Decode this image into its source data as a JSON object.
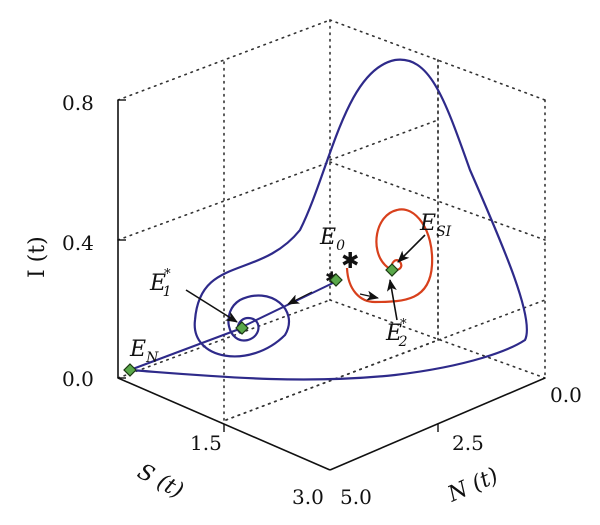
{
  "chart_data": {
    "type": "line",
    "title": "",
    "axes": {
      "z": {
        "label": "I (t)",
        "ticks": [
          "0.8",
          "0.4",
          "0.0"
        ]
      },
      "s": {
        "label": "S (t)",
        "ticks": [
          "1.5",
          "3.0"
        ]
      },
      "n": {
        "label": "N (t)",
        "ticks": [
          "0.0",
          "2.5",
          "5.0"
        ]
      }
    },
    "series": [
      {
        "color": "#2e2a8a"
      },
      {
        "color": "#d8401c"
      }
    ],
    "points": [
      {
        "id": "EN",
        "base": "E",
        "sub": "N",
        "sup": ""
      },
      {
        "id": "E1",
        "base": "E",
        "sub": "1",
        "sup": "*"
      },
      {
        "id": "E0",
        "base": "E",
        "sub": "0",
        "sup": ""
      },
      {
        "id": "ESI",
        "base": "E",
        "sub": "SI",
        "sup": ""
      },
      {
        "id": "E2",
        "base": "E",
        "sub": "2",
        "sup": "*"
      }
    ],
    "colors": {
      "equilibrium_fill": "#5aa84a",
      "equilibrium_stroke": "#1b3a12"
    },
    "grid": true
  }
}
